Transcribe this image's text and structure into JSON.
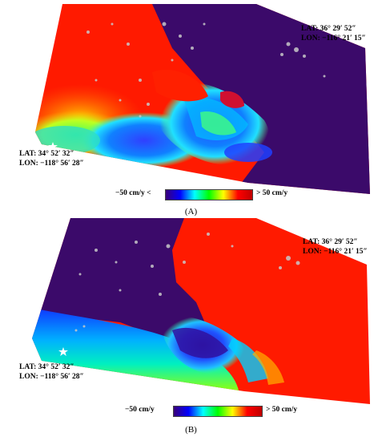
{
  "panels": [
    {
      "id": "A",
      "caption": "(A)",
      "ne_corner": {
        "lat": "LAT: 36° 29′ 52″",
        "lon": "LON: −116° 21′ 15″"
      },
      "sw_corner": {
        "lat": "LAT: 34° 52′ 32″",
        "lon": "LON: −118° 56′ 28″"
      },
      "colorbar": {
        "min_label": "−50 cm/y <",
        "max_label": "> 50 cm/y",
        "colors": [
          "#3a007a",
          "#0000ff",
          "#00ffff",
          "#00ff00",
          "#ffff00",
          "#ff0000",
          "#c00000"
        ]
      }
    },
    {
      "id": "B",
      "caption": "(B)",
      "ne_corner": {
        "lat": "LAT: 36° 29′ 52″",
        "lon": "LON: −116° 21′ 15″"
      },
      "sw_corner": {
        "lat": "LAT: 34° 52′ 32″",
        "lon": "LON: −118° 56′ 28″"
      },
      "colorbar": {
        "min_label": "−50 cm/y",
        "max_label": "> 50 cm/y",
        "colors": [
          "#3a007a",
          "#0000ff",
          "#00ffff",
          "#00ff00",
          "#ffff00",
          "#ff0000",
          "#c00000"
        ]
      }
    }
  ],
  "colors": {
    "deep_purple": "#3b0a6a",
    "red": "#ff1a00",
    "star": "#ffffff"
  }
}
